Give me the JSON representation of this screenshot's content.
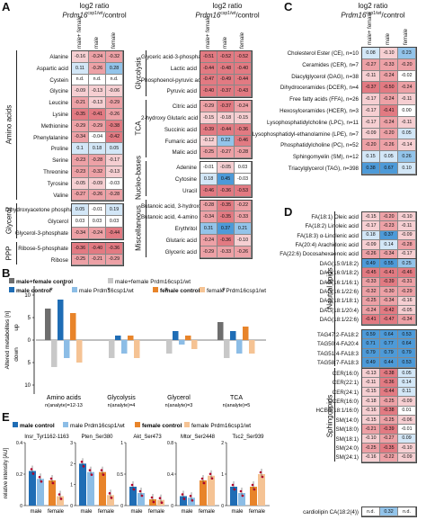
{
  "panels": {
    "A": "A",
    "B": "B",
    "C": "C",
    "D": "D",
    "E": "E"
  },
  "header": {
    "line1": "log2 ratio",
    "line2_italic": "Prdm16",
    "line2_sup": "csp1/wt",
    "line2_rest": "/control",
    "col_mf": "male+ female",
    "col_m": "male",
    "col_f": "female"
  },
  "colors": {
    "red_strong": "#e06c75",
    "red_light": "#f3c6c9",
    "red_mid": "#ea9aa0",
    "blue_strong": "#3d8fd1",
    "blue_light": "#a9d0ef",
    "na": "#ffffff"
  },
  "panelA_left": {
    "groups": [
      {
        "name": "Amino acids",
        "rows": [
          {
            "label": "Alanine",
            "v": [
              "-0.16",
              "-0.24",
              "-0.32"
            ]
          },
          {
            "label": "Aspartic acid",
            "v": [
              "0.11",
              "-0.26",
              "0.28"
            ]
          },
          {
            "label": "Cystein",
            "v": [
              "n.d.",
              "n.d.",
              "n.d."
            ]
          },
          {
            "label": "Glycine",
            "v": [
              "-0.09",
              "-0.13",
              "-0.06"
            ]
          },
          {
            "label": "Leucine",
            "v": [
              "-0.21",
              "-0.13",
              "-0.29"
            ]
          },
          {
            "label": "Lysine",
            "v": [
              "-0.35",
              "-0.41",
              "-0.26"
            ]
          },
          {
            "label": "Methionine",
            "v": [
              "-0.29",
              "-0.29",
              "-0.38"
            ]
          },
          {
            "label": "Phenylalanine",
            "v": [
              "-0.34",
              "-0.04",
              "-0.42"
            ]
          },
          {
            "label": "Proline",
            "v": [
              "0.1",
              "0.18",
              "0.05"
            ]
          },
          {
            "label": "Serine",
            "v": [
              "-0.23",
              "-0.28",
              "-0.17"
            ]
          },
          {
            "label": "Threonine",
            "v": [
              "-0.23",
              "-0.32",
              "-0.13"
            ]
          },
          {
            "label": "Tyrosine",
            "v": [
              "-0.05",
              "-0.09",
              "-0.03"
            ]
          },
          {
            "label": "Valine",
            "v": [
              "-0.27",
              "-0.26",
              "-0.28"
            ]
          }
        ]
      },
      {
        "name": "Glycerol",
        "rows": [
          {
            "label": "Dihydroxyacetone phosphate",
            "v": [
              "0.05",
              "-0.01",
              "0.19"
            ]
          },
          {
            "label": "Glycerol",
            "v": [
              "0.03",
              "0.03",
              "0.03"
            ]
          },
          {
            "label": "Glycerol-3-phosphate",
            "v": [
              "-0.34",
              "-0.24",
              "-0.44"
            ]
          }
        ]
      },
      {
        "name": "PPP",
        "rows": [
          {
            "label": "Ribose-5-phosphate",
            "v": [
              "-0.36",
              "-0.40",
              "-0.36"
            ]
          },
          {
            "label": "Ribose",
            "v": [
              "-0.25",
              "-0.21",
              "-0.29"
            ]
          }
        ]
      }
    ]
  },
  "panelA_right": {
    "groups": [
      {
        "name": "Glycolysis",
        "rows": [
          {
            "label": "Glyceric acid-3-phosphate",
            "v": [
              "-0.51",
              "-0.52",
              "-0.52"
            ]
          },
          {
            "label": "Lactic acid",
            "v": [
              "-0.44",
              "-0.48",
              "-0.40"
            ]
          },
          {
            "label": "Phosphoenol-pyruvic acid",
            "v": [
              "-0.47",
              "-0.49",
              "-0.44"
            ]
          },
          {
            "label": "Pyruvic acid",
            "v": [
              "-0.40",
              "-0.37",
              "-0.43"
            ]
          }
        ]
      },
      {
        "name": "TCA",
        "rows": [
          {
            "label": "Citric acid",
            "v": [
              "-0.29",
              "-0.37",
              "-0.24"
            ]
          },
          {
            "label": "2-hydroxy Glutaric acid",
            "v": [
              "-0.15",
              "-0.18",
              "-0.15"
            ]
          },
          {
            "label": "Succinic acid",
            "v": [
              "-0.39",
              "-0.44",
              "-0.36"
            ]
          },
          {
            "label": "Fumaric acid",
            "v": [
              "-0.12",
              "0.22",
              "-0.46"
            ]
          },
          {
            "label": "Malic acid",
            "v": [
              "-0.25",
              "-0.27",
              "-0.28"
            ]
          }
        ]
      },
      {
        "name": "Nucleo-bases",
        "rows": [
          {
            "label": "Adenine",
            "v": [
              "-0.01",
              "-0.05",
              "0.03"
            ]
          },
          {
            "label": "Cytosine",
            "v": [
              "0.18",
              "0.45",
              "-0.03"
            ]
          },
          {
            "label": "Uracil",
            "v": [
              "-0.46",
              "-0.36",
              "-0.53"
            ]
          }
        ]
      },
      {
        "name": "Miscellaneous",
        "rows": [
          {
            "label": "Butanoic acid, 3-hydroxy",
            "v": [
              "-0.28",
              "-0.35",
              "-0.22"
            ]
          },
          {
            "label": "Butanoic acid, 4-amino",
            "v": [
              "-0.34",
              "-0.35",
              "-0.33"
            ]
          },
          {
            "label": "Erythritol",
            "v": [
              "0.31",
              "0.37",
              "0.21"
            ]
          },
          {
            "label": "Glutaric acid",
            "v": [
              "-0.24",
              "-0.36",
              "-0.10"
            ]
          },
          {
            "label": "Glyceric acid",
            "v": [
              "-0.29",
              "-0.33",
              "-0.26"
            ]
          }
        ]
      }
    ]
  },
  "panelC": {
    "rows": [
      {
        "label": "Cholesterol Ester (CE), n=10",
        "v": [
          "0.08",
          "-0.10",
          "0.23"
        ]
      },
      {
        "label": "Ceramides (CER), n=7",
        "v": [
          "-0.27",
          "-0.33",
          "-0.20"
        ]
      },
      {
        "label": "Diacylglycerol (DAG), n=38",
        "v": [
          "-0.11",
          "-0.24",
          "-0.02"
        ]
      },
      {
        "label": "Dihydroceramides (DCER), n=4",
        "v": [
          "-0.37",
          "-0.50",
          "-0.24"
        ]
      },
      {
        "label": "Free fatty acids (FFA), n=26",
        "v": [
          "-0.17",
          "-0.24",
          "-0.11"
        ]
      },
      {
        "label": "Hexosylceramides (HCER), n=3",
        "v": [
          "-0.17",
          "-0.41",
          "0.00"
        ]
      },
      {
        "label": "Lysophosphatidylcholine (LPC), n=11",
        "v": [
          "-0.17",
          "-0.24",
          "-0.11"
        ]
      },
      {
        "label": "Lysophosphatidyl-ethanolamine (LPE), n=7",
        "v": [
          "-0.09",
          "-0.20",
          "0.05"
        ]
      },
      {
        "label": "Phosphatidylcholine (PC), n=52",
        "v": [
          "-0.20",
          "-0.26",
          "-0.14"
        ]
      },
      {
        "label": "Sphingomyelin (SM), n=12",
        "v": [
          "0.15",
          "0.05",
          "0.26"
        ]
      },
      {
        "label": "Triacylglycerol (TAG), n=398",
        "v": [
          "0.38",
          "0.67",
          "0.10"
        ]
      }
    ]
  },
  "panelD": {
    "group_label_neutral": "Neutral lipids",
    "group_label_sphingo": "Sphingolipids",
    "rows": [
      {
        "label": "FA(18:1) Oleic acid",
        "v": [
          "-0.15",
          "-0.20",
          "-0.10"
        ]
      },
      {
        "label": "FA(18:2) Linoleic acid",
        "v": [
          "-0.17",
          "-0.23",
          "-0.11"
        ]
      },
      {
        "label": "FA(18:3) α-Linolenic acid",
        "v": [
          "0.18",
          "0.37",
          "-0.09"
        ]
      },
      {
        "label": "FA(20:4) Arachidonic acid",
        "v": [
          "-0.09",
          "0.14",
          "-0.28"
        ]
      },
      {
        "label": "FA(22:6) Docosahexaenoic acid",
        "v": [
          "-0.26",
          "-0.34",
          "-0.17"
        ]
      },
      {
        "label": "DAG(15:0/18:2)",
        "v": [
          "0.49",
          "0.55",
          "0.25"
        ]
      },
      {
        "label": "DAG(16:0/18:2)",
        "v": [
          "-0.45",
          "-0.41",
          "-0.46"
        ]
      },
      {
        "label": "DAG(16:1/16:1)",
        "v": [
          "-0.33",
          "-0.39",
          "-0.31"
        ]
      },
      {
        "label": "DAG(16:1/22:6)",
        "v": [
          "-0.32",
          "-0.30",
          "-0.29"
        ]
      },
      {
        "label": "DAG(18:1/18:1)",
        "v": [
          "-0.25",
          "-0.34",
          "-0.16"
        ]
      },
      {
        "label": "DAG(18:1/20:4)",
        "v": [
          "-0.24",
          "-0.42",
          "-0.05"
        ]
      },
      {
        "label": "DAG(18:1/22:6)",
        "v": [
          "-0.41",
          "-0.47",
          "-0.34"
        ]
      },
      {
        "label": "TAG47:2-FA18:2",
        "v": [
          "0.59",
          "0.64",
          "0.53"
        ]
      },
      {
        "label": "TAG50:4-FA20:4",
        "v": [
          "0.71",
          "0.77",
          "0.64"
        ]
      },
      {
        "label": "TAG51:4-FA18:3",
        "v": [
          "0.79",
          "0.79",
          "0.79"
        ]
      },
      {
        "label": "TAG58:7-FA18:3",
        "v": [
          "0.49",
          "0.44",
          "0.53"
        ]
      },
      {
        "label": "CER(16:0)",
        "v": [
          "-0.13",
          "-0.38",
          "0.05"
        ]
      },
      {
        "label": "CER(22:1)",
        "v": [
          "-0.11",
          "-0.36",
          "0.14"
        ]
      },
      {
        "label": "CER(24:1)",
        "v": [
          "-0.15",
          "-0.44",
          "0.11"
        ]
      },
      {
        "label": "DCER(16:0)",
        "v": [
          "-0.18",
          "-0.25",
          "-0.09"
        ]
      },
      {
        "label": "HCER(18:1/16:0)",
        "v": [
          "-0.16",
          "-0.38",
          "0.01"
        ]
      },
      {
        "label": "SM(14:0)",
        "v": [
          "-0.15",
          "-0.25",
          "-0.06"
        ]
      },
      {
        "label": "SM(18:0)",
        "v": [
          "-0.21",
          "-0.39",
          "-0.01"
        ]
      },
      {
        "label": "SM(18:1)",
        "v": [
          "-0.10",
          "-0.27",
          "0.09"
        ]
      },
      {
        "label": "SM(24:0)",
        "v": [
          "-0.25",
          "-0.35",
          "-0.10"
        ]
      },
      {
        "label": "SM(24:1)",
        "v": [
          "-0.16",
          "-0.22",
          "-0.09"
        ]
      }
    ],
    "cardiolipin": {
      "label": "cardiolipin CA(18:2(4))",
      "v": [
        "n.d.",
        "0.32",
        "n.d."
      ]
    }
  },
  "panelB": {
    "legend": [
      {
        "label": "male+female control",
        "color": "#6e6e6e"
      },
      {
        "label": "male+female Prdm16csp1/wt",
        "color": "#c8c8c8"
      },
      {
        "label": "male control",
        "color": "#1f6db5"
      },
      {
        "label": "male Prdm16csp1/wt",
        "color": "#8cbde6"
      },
      {
        "label": "female control",
        "color": "#e8842a"
      },
      {
        "label": "female Prdm16csp1/wt",
        "color": "#f5c394"
      }
    ],
    "ylabel": "Altered metabolites [n]",
    "up_label": "up",
    "down_label": "down",
    "yticks": [
      "10",
      "5",
      "0",
      "5",
      "10"
    ],
    "star": "*"
  },
  "chart_data": [
    {
      "type": "bar",
      "title": "",
      "ylabel": "Altered metabolites [n] (up positive, down negative)",
      "categories": [
        "Amino acids",
        "Glycolysis",
        "Glycerol",
        "TCA"
      ],
      "category_notes": [
        "n(analyte)=12-13",
        "n(analyte)=4",
        "n(analyte)=3",
        "n(analyte)=5"
      ],
      "series": [
        {
          "name": "male+female control",
          "values": [
            7,
            0,
            0,
            4
          ]
        },
        {
          "name": "male+female Prdm16csp1/wt",
          "values": [
            -6,
            -4,
            -3,
            -4
          ]
        },
        {
          "name": "male control",
          "values": [
            9,
            1,
            2,
            2
          ]
        },
        {
          "name": "male Prdm16csp1/wt",
          "values": [
            -4,
            -3,
            -1,
            -3
          ]
        },
        {
          "name": "female control",
          "values": [
            6,
            1,
            1,
            3
          ]
        },
        {
          "name": "female Prdm16csp1/wt",
          "values": [
            -5,
            -4,
            -2,
            -3
          ]
        }
      ],
      "ylim": [
        -12,
        12
      ]
    },
    {
      "type": "bar",
      "ylabel": "relative intensity [AU]",
      "categories": [
        "male",
        "female"
      ],
      "panels": [
        {
          "title": "Insr_Tyr1162-1163",
          "control": [
            0.22,
            0.16
          ],
          "prdm16": [
            0.17,
            0.06
          ],
          "ylim": [
            0,
            0.4
          ],
          "yticks": [
            "0",
            "0.2",
            "0.4"
          ]
        },
        {
          "title": "Pten_Ser380",
          "control": [
            2.0,
            1.6
          ],
          "prdm16": [
            1.6,
            0.5
          ],
          "ylim": [
            0,
            3
          ],
          "yticks": [
            "0",
            "1",
            "2",
            "3"
          ]
        },
        {
          "title": "Akt_Ser473",
          "control": [
            0.3,
            0.1
          ],
          "prdm16": [
            0.2,
            0.09
          ],
          "ylim": [
            0,
            1
          ],
          "yticks": [
            "0",
            "0.5",
            "1"
          ]
        },
        {
          "title": "Mtor_Ser2448",
          "control": [
            0.12,
            0.32
          ],
          "prdm16": [
            0.1,
            0.38
          ],
          "ylim": [
            0,
            0.8
          ],
          "yticks": [
            "0",
            "0.4",
            "0.8"
          ]
        },
        {
          "title": "Tsc2_Ser939",
          "control": [
            0.6,
            0.6
          ],
          "prdm16": [
            0.4,
            1.0
          ],
          "ylim": [
            0,
            2
          ],
          "yticks": [
            "0",
            "1",
            "2"
          ]
        }
      ]
    }
  ],
  "panelB_xlabels": [
    {
      "name": "Amino acids",
      "n": "n(analyte)=12-13"
    },
    {
      "name": "Glycolysis",
      "n": "n(analyte)=4"
    },
    {
      "name": "Glycerol",
      "n": "n(analyte)=3"
    },
    {
      "name": "TCA",
      "n": "n(analyte)=5"
    }
  ],
  "panelE_legend": [
    {
      "label": "male control",
      "color": "#1f6db5"
    },
    {
      "label": "male Prdm16csp1/wt",
      "color": "#8cbde6"
    },
    {
      "label": "female control",
      "color": "#e8842a"
    },
    {
      "label": "female Prdm16csp1/wt",
      "color": "#f5c394"
    }
  ],
  "panelE_xlabels": [
    "male",
    "female"
  ]
}
